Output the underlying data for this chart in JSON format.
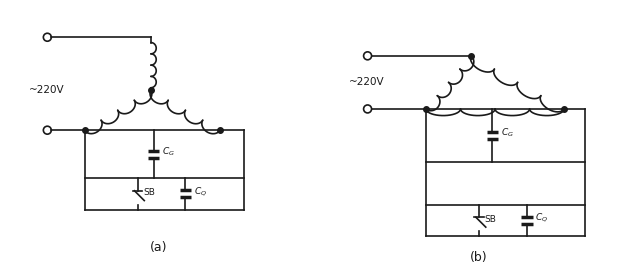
{
  "bg_color": "#ffffff",
  "line_color": "#1a1a1a",
  "label_a": "(a)",
  "label_b": "(b)",
  "voltage_label": "~220V",
  "fig_width": 6.38,
  "fig_height": 2.71,
  "dpi": 100
}
